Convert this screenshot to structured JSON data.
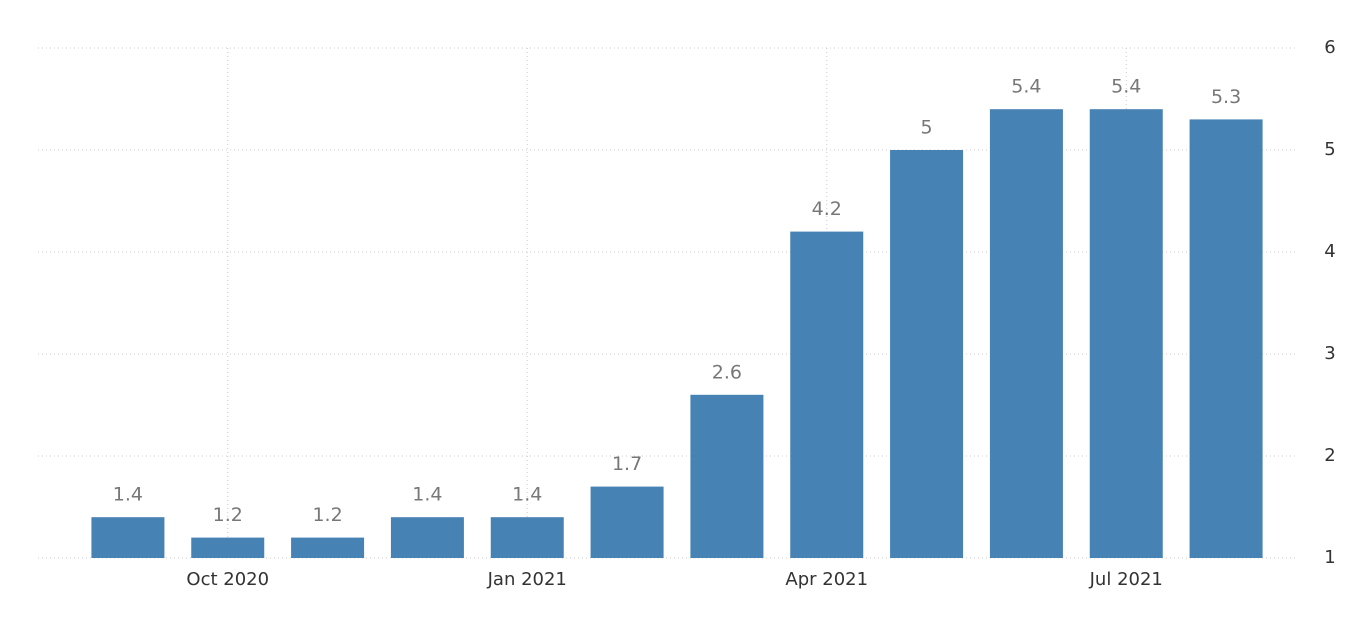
{
  "chart_data": {
    "type": "bar",
    "categories": [
      null,
      "Oct 2020",
      null,
      null,
      "Jan 2021",
      null,
      null,
      "Apr 2021",
      null,
      null,
      "Jul 2021",
      null
    ],
    "values": [
      1.4,
      1.2,
      1.2,
      1.4,
      1.4,
      1.7,
      2.6,
      4.2,
      5,
      5.4,
      5.4,
      5.3
    ],
    "color": "#4682b4",
    "ylim": [
      1,
      6
    ],
    "yticks": [
      1,
      2,
      3,
      4,
      5,
      6
    ],
    "grid": true,
    "y_axis_side": "right"
  }
}
